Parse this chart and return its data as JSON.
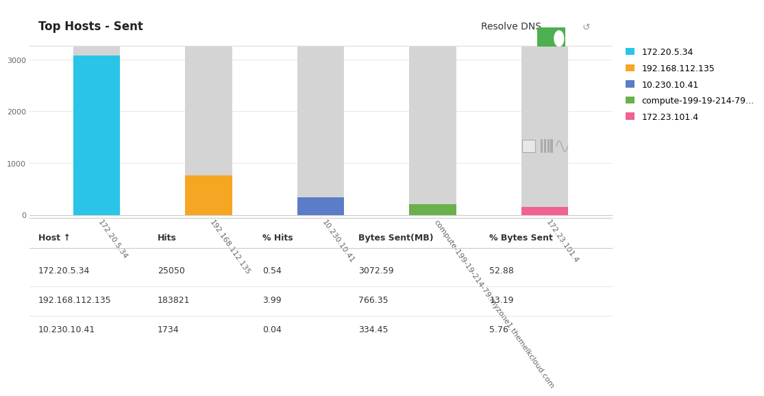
{
  "title": "Top Hosts - Sent",
  "resolve_dns_label": "Resolve DNS",
  "hosts": [
    "172.20.5.34",
    "192.168.112.135",
    "10.230.10.41",
    "compute-199-19-214-79.myzone1.themelkcloud.com",
    "172.23.101.4"
  ],
  "bytes_sent": [
    3072.59,
    766.35,
    334.45,
    200.0,
    150.0
  ],
  "total_bar_height": 3250,
  "colors": [
    "#29c4e8",
    "#f5a623",
    "#5b7dc8",
    "#6ab04c",
    "#f06292"
  ],
  "legend_labels": [
    "172.20.5.34",
    "192.168.112.135",
    "10.230.10.41",
    "compute-199-19-214-79...",
    "172.23.101.4"
  ],
  "background_color": "#ffffff",
  "grid_color": "#e8e8e8",
  "bar_bg_color": "#d4d4d4",
  "ylim": [
    0,
    3250
  ],
  "yticks": [
    0,
    1000,
    2000,
    3000
  ],
  "table_headers": [
    "Host ↑",
    "Hits",
    "% Hits",
    "Bytes Sent(MB)",
    "% Bytes Sent"
  ],
  "table_data": [
    [
      "172.20.5.34",
      "25050",
      "0.54",
      "3072.59",
      "52.88"
    ],
    [
      "192.168.112.135",
      "183821",
      "3.99",
      "766.35",
      "13.19"
    ],
    [
      "10.230.10.41",
      "1734",
      "0.04",
      "334.45",
      "5.76"
    ]
  ],
  "font_size_title": 12,
  "font_size_table": 9,
  "font_size_axis": 8,
  "font_size_legend": 9
}
